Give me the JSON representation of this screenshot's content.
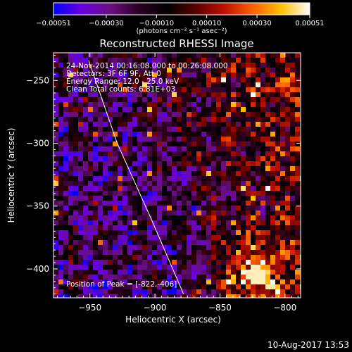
{
  "chart_data": {
    "type": "heatmap",
    "title": "Reconstructed RHESSI Image",
    "xlabel": "Heliocentric X (arcsec)",
    "ylabel": "Heliocentric Y (arcsec)",
    "xlim": [
      -978,
      -788
    ],
    "ylim": [
      -423,
      -228
    ],
    "xticks": [
      -950,
      -900,
      -850,
      -800
    ],
    "xtick_labels": [
      "−950",
      "−900",
      "−850",
      "−800"
    ],
    "yticks": [
      -250,
      -300,
      -350,
      -400
    ],
    "ytick_labels": [
      "−250",
      "−300",
      "−350",
      "−400"
    ],
    "colorbar": {
      "range": [
        -0.00051,
        0.00051
      ],
      "ticks": [
        -0.00051,
        -0.0003,
        -0.0001,
        0.0001,
        0.0003,
        0.00051
      ],
      "tick_labels": [
        "−0.00051",
        "−0.00030",
        "−0.00010",
        "0.00010",
        "0.00030",
        "0.00051"
      ],
      "unit_label": "(photons cm⁻² s⁻¹ asec⁻²)",
      "colormap": [
        "#0000ff",
        "#6a00e0",
        "#6a0f7f",
        "#2a0020",
        "#000000",
        "#5a0000",
        "#c01000",
        "#ff6000",
        "#ffc000",
        "#ffffff"
      ]
    },
    "annotations": [
      "24-Nov-2014 00:16:08.000 to 00:26:08.000",
      "Detectors: 3F 6F 9F, Att 0",
      "Energy Range: 12.0 - 25.0 keV",
      "Clean    Total counts: 6.81E+03"
    ],
    "peak_label": "Position of Peak = [-822,-406]",
    "peak": {
      "x": -822,
      "y": -406
    },
    "limb_line": [
      {
        "x": -951,
        "y": -234
      },
      {
        "x": -929,
        "y": -300
      },
      {
        "x": -903,
        "y": -360
      },
      {
        "x": -878,
        "y": -420
      }
    ],
    "grid": false
  },
  "timestamp": "10-Aug-2017 13:53"
}
